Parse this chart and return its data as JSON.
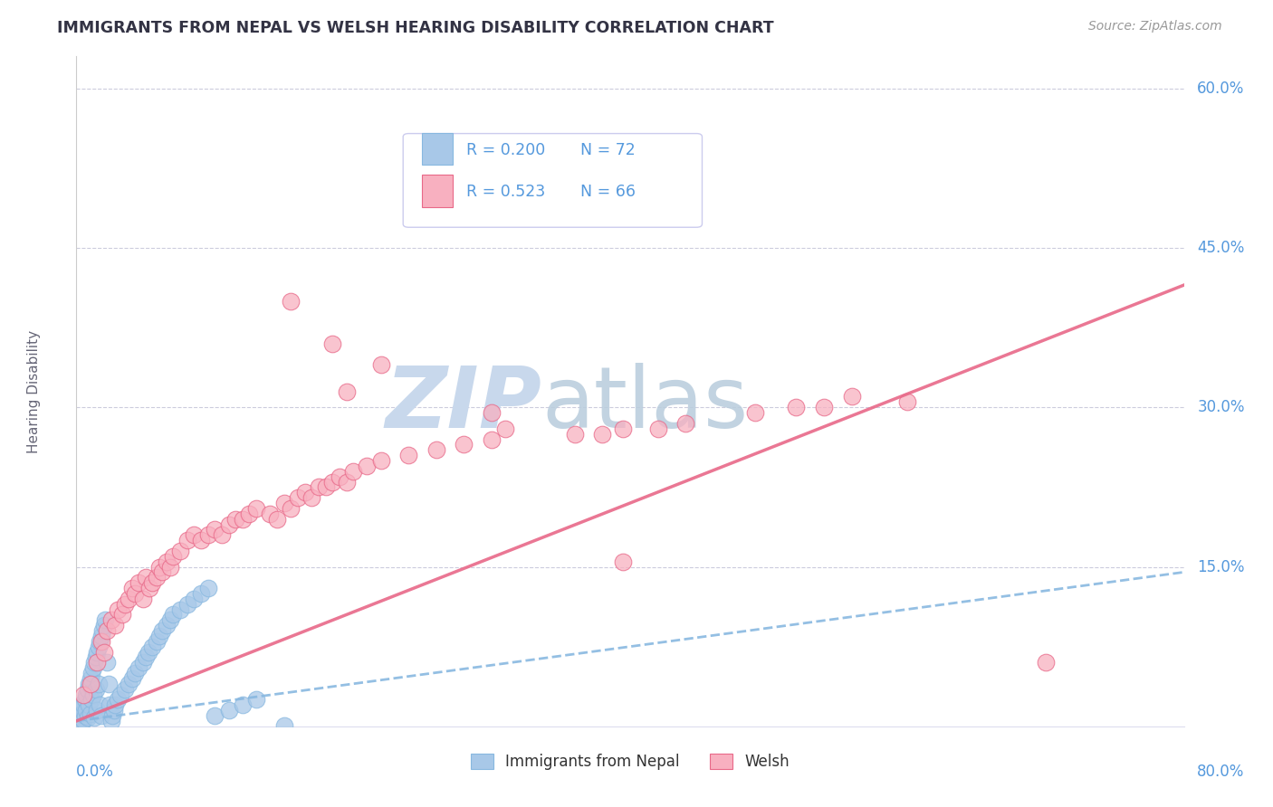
{
  "title": "IMMIGRANTS FROM NEPAL VS WELSH HEARING DISABILITY CORRELATION CHART",
  "source": "Source: ZipAtlas.com",
  "ylabel": "Hearing Disability",
  "xlim": [
    0.0,
    0.8
  ],
  "ylim": [
    0.0,
    0.63
  ],
  "legend_r1": "R = 0.200",
  "legend_n1": "N = 72",
  "legend_r2": "R = 0.523",
  "legend_n2": "N = 66",
  "series1_color": "#a8c8e8",
  "series2_color": "#f8b0c0",
  "line1_color": "#88b8e0",
  "line2_color": "#e86888",
  "title_color": "#333344",
  "source_color": "#999999",
  "axis_label_color": "#5599dd",
  "grid_color": "#ccccdd",
  "watermark_color": "#c8d8ec",
  "nepal_line_x": [
    0.0,
    0.8
  ],
  "nepal_line_y": [
    0.005,
    0.145
  ],
  "welsh_line_x": [
    0.0,
    0.8
  ],
  "welsh_line_y": [
    0.005,
    0.415
  ],
  "nepal_x": [
    0.001,
    0.002,
    0.002,
    0.003,
    0.003,
    0.004,
    0.004,
    0.005,
    0.005,
    0.006,
    0.006,
    0.007,
    0.007,
    0.008,
    0.008,
    0.009,
    0.009,
    0.01,
    0.01,
    0.011,
    0.011,
    0.012,
    0.012,
    0.013,
    0.013,
    0.014,
    0.014,
    0.015,
    0.015,
    0.016,
    0.016,
    0.017,
    0.017,
    0.018,
    0.018,
    0.019,
    0.02,
    0.021,
    0.022,
    0.023,
    0.024,
    0.025,
    0.026,
    0.027,
    0.028,
    0.03,
    0.032,
    0.035,
    0.038,
    0.04,
    0.042,
    0.045,
    0.048,
    0.05,
    0.052,
    0.055,
    0.058,
    0.06,
    0.062,
    0.065,
    0.068,
    0.07,
    0.075,
    0.08,
    0.085,
    0.09,
    0.095,
    0.1,
    0.11,
    0.12,
    0.13,
    0.15
  ],
  "nepal_y": [
    0.01,
    0.005,
    0.015,
    0.008,
    0.018,
    0.003,
    0.012,
    0.02,
    0.006,
    0.025,
    0.01,
    0.03,
    0.015,
    0.035,
    0.008,
    0.04,
    0.02,
    0.045,
    0.012,
    0.05,
    0.025,
    0.055,
    0.03,
    0.06,
    0.008,
    0.065,
    0.035,
    0.07,
    0.015,
    0.075,
    0.04,
    0.08,
    0.02,
    0.085,
    0.01,
    0.09,
    0.095,
    0.1,
    0.06,
    0.04,
    0.02,
    0.005,
    0.01,
    0.015,
    0.02,
    0.025,
    0.03,
    0.035,
    0.04,
    0.045,
    0.05,
    0.055,
    0.06,
    0.065,
    0.07,
    0.075,
    0.08,
    0.085,
    0.09,
    0.095,
    0.1,
    0.105,
    0.11,
    0.115,
    0.12,
    0.125,
    0.13,
    0.01,
    0.015,
    0.02,
    0.025,
    0.001
  ],
  "welsh_x": [
    0.005,
    0.01,
    0.015,
    0.018,
    0.02,
    0.022,
    0.025,
    0.028,
    0.03,
    0.033,
    0.035,
    0.038,
    0.04,
    0.042,
    0.045,
    0.048,
    0.05,
    0.053,
    0.055,
    0.058,
    0.06,
    0.062,
    0.065,
    0.068,
    0.07,
    0.075,
    0.08,
    0.085,
    0.09,
    0.095,
    0.1,
    0.105,
    0.11,
    0.115,
    0.12,
    0.125,
    0.13,
    0.14,
    0.145,
    0.15,
    0.155,
    0.16,
    0.165,
    0.17,
    0.175,
    0.18,
    0.185,
    0.19,
    0.195,
    0.2,
    0.21,
    0.22,
    0.24,
    0.26,
    0.28,
    0.3,
    0.38,
    0.42,
    0.44,
    0.49,
    0.52,
    0.54,
    0.56,
    0.6,
    0.7,
    0.31
  ],
  "welsh_y": [
    0.03,
    0.04,
    0.06,
    0.08,
    0.07,
    0.09,
    0.1,
    0.095,
    0.11,
    0.105,
    0.115,
    0.12,
    0.13,
    0.125,
    0.135,
    0.12,
    0.14,
    0.13,
    0.135,
    0.14,
    0.15,
    0.145,
    0.155,
    0.15,
    0.16,
    0.165,
    0.175,
    0.18,
    0.175,
    0.18,
    0.185,
    0.18,
    0.19,
    0.195,
    0.195,
    0.2,
    0.205,
    0.2,
    0.195,
    0.21,
    0.205,
    0.215,
    0.22,
    0.215,
    0.225,
    0.225,
    0.23,
    0.235,
    0.23,
    0.24,
    0.245,
    0.25,
    0.255,
    0.26,
    0.265,
    0.27,
    0.275,
    0.28,
    0.285,
    0.295,
    0.3,
    0.3,
    0.31,
    0.305,
    0.06,
    0.28
  ],
  "welsh_outlier_x": [
    0.155,
    0.185,
    0.22,
    0.195,
    0.3,
    0.36,
    0.395,
    0.395
  ],
  "welsh_outlier_y": [
    0.4,
    0.36,
    0.34,
    0.315,
    0.295,
    0.275,
    0.28,
    0.155
  ]
}
